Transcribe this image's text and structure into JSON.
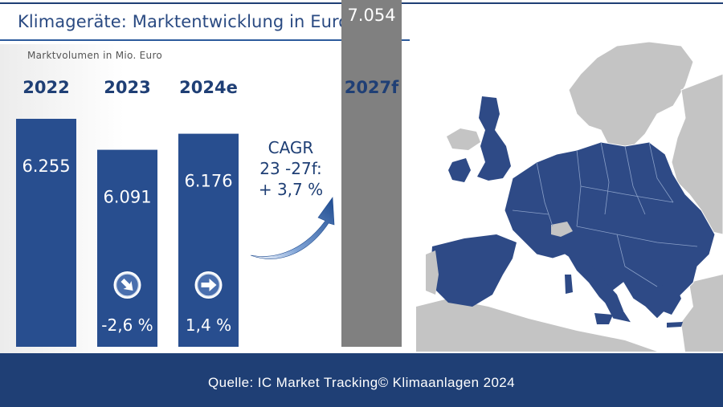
{
  "header": {
    "title": "Klimageräte: Marktentwicklung in Europa"
  },
  "footer": {
    "source": "Quelle: IC Market Tracking© Klimaanlagen 2024"
  },
  "colors": {
    "brand_blue": "#1f3f75",
    "bar_blue": "#284e8f",
    "forecast_gray": "#808080",
    "map_blue": "#2e4a86",
    "map_gray": "#c4c4c4"
  },
  "chart_data": {
    "type": "bar",
    "ylabel": "Marktvolumen  in Mio. Euro",
    "categories": [
      "2022",
      "2023",
      "2024e",
      "2027f"
    ],
    "values": [
      6255,
      6091,
      6176,
      7054
    ],
    "value_labels": [
      "6.255",
      "6.091",
      "6.176",
      "7.054"
    ],
    "growth_labels": [
      "",
      "-2,6 %",
      "1,4 %",
      ""
    ],
    "growth_icons": [
      "",
      "arrow-down-right-icon",
      "arrow-right-icon",
      ""
    ],
    "bar_colors": [
      "#284e8f",
      "#284e8f",
      "#284e8f",
      "#808080"
    ],
    "cagr": [
      "CAGR",
      "23 -27f:",
      "+ 3,7 %"
    ]
  },
  "map": {
    "highlighted": "Europe"
  }
}
